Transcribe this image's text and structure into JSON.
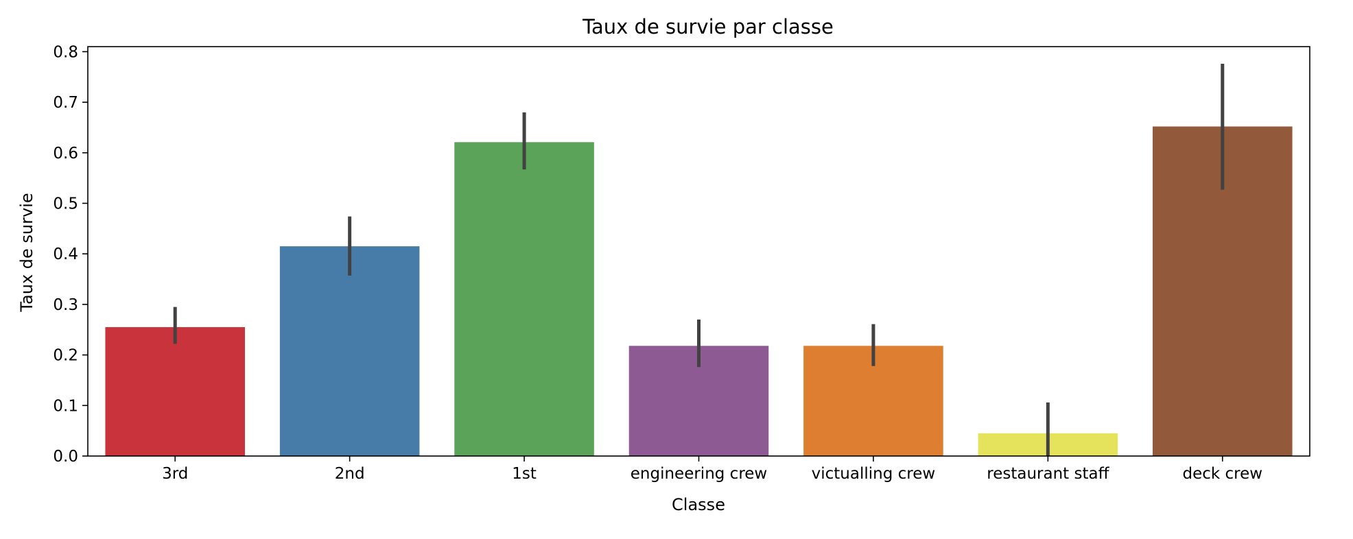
{
  "chart_data": {
    "type": "bar",
    "title": "Taux de survie par classe",
    "xlabel": "Classe",
    "ylabel": "Taux de survie",
    "categories": [
      "3rd",
      "2nd",
      "1st",
      "engineering crew",
      "victualling crew",
      "restaurant staff",
      "deck crew"
    ],
    "values": [
      0.255,
      0.415,
      0.621,
      0.218,
      0.218,
      0.045,
      0.652
    ],
    "error_low": [
      0.222,
      0.357,
      0.567,
      0.176,
      0.178,
      0.0,
      0.527
    ],
    "error_high": [
      0.295,
      0.474,
      0.68,
      0.27,
      0.261,
      0.106,
      0.776
    ],
    "colors": [
      "#c9333b",
      "#487ca8",
      "#5ca35a",
      "#8d5a93",
      "#dd7e30",
      "#e4e35b",
      "#925a3b"
    ],
    "error_color": "#424242",
    "ylim": [
      0,
      0.81
    ],
    "yticks": [
      "0.0",
      "0.1",
      "0.2",
      "0.3",
      "0.4",
      "0.5",
      "0.6",
      "0.7",
      "0.8"
    ],
    "grid": false,
    "legend": "none"
  }
}
